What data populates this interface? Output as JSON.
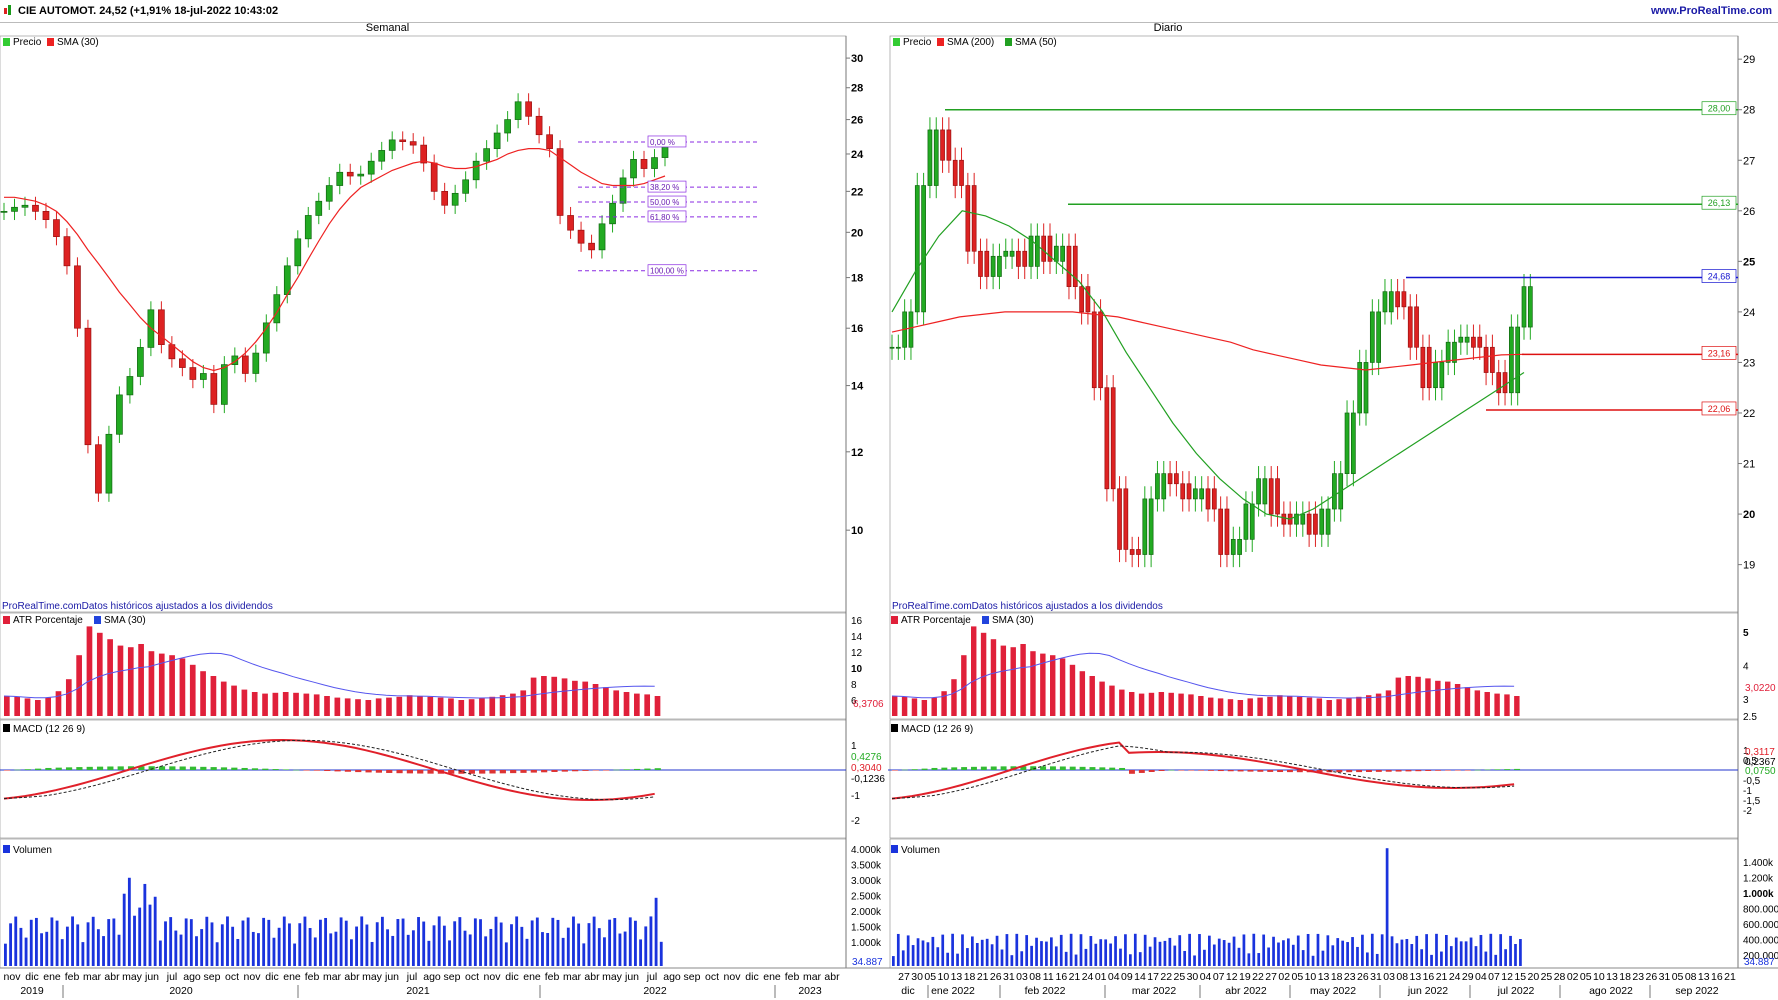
{
  "header": {
    "title": "CIE AUTOMOT. 24,52 (+1,91% 18-jul-2022 10:43:02",
    "url": "www.ProRealTime.com"
  },
  "panels": {
    "weekly": {
      "title": "Semanal",
      "price_legend": [
        "Precio",
        "SMA (30)"
      ],
      "source_note": "ProRealTime.comDatos históricos ajustados a los dividendos",
      "atr_legend": [
        "ATR Porcentaje",
        "SMA (30)"
      ],
      "macd_legend": "MACD (12 26 9)",
      "vol_legend": "Volumen",
      "fib_labels": [
        "0,00 %",
        "38,20 %",
        "50,00 %",
        "61,80 %",
        "100,00 %"
      ],
      "x_months": [
        "nov",
        "dic",
        "ene",
        "feb",
        "mar",
        "abr",
        "may",
        "jun",
        "jul",
        "ago",
        "sep",
        "oct",
        "nov",
        "dic",
        "ene",
        "feb",
        "mar",
        "abr",
        "may",
        "jun",
        "jul",
        "ago",
        "sep",
        "oct",
        "nov",
        "dic",
        "ene",
        "feb",
        "mar",
        "abr",
        "may",
        "jun",
        "jul",
        "ago",
        "sep",
        "oct",
        "nov",
        "dic",
        "ene",
        "feb",
        "mar",
        "abr"
      ],
      "x_years": [
        "2019",
        "2020",
        "2021",
        "2022",
        "2023"
      ]
    },
    "daily": {
      "title": "Diario",
      "price_legend": [
        "Precio",
        "SMA (200)",
        "SMA (50)"
      ],
      "source_note": "ProRealTime.comDatos históricos ajustados a los dividendos",
      "atr_legend": [
        "ATR Porcentaje",
        "SMA (30)"
      ],
      "macd_legend": "MACD (12 26 9)",
      "vol_legend": "Volumen",
      "level_labels": [
        "28,00",
        "26,13",
        "24,68",
        "23,16",
        "22,06"
      ],
      "x_days": [
        "27",
        "30",
        "05",
        "10",
        "13",
        "18",
        "21",
        "26",
        "31",
        "03",
        "08",
        "11",
        "16",
        "21",
        "24",
        "01",
        "04",
        "09",
        "14",
        "17",
        "22",
        "25",
        "30",
        "04",
        "07",
        "12",
        "19",
        "22",
        "27",
        "02",
        "05",
        "10",
        "13",
        "18",
        "23",
        "26",
        "31",
        "03",
        "08",
        "13",
        "16",
        "21",
        "24",
        "29",
        "04",
        "07",
        "12",
        "15",
        "20",
        "25",
        "28",
        "02",
        "05",
        "10",
        "13",
        "18",
        "23",
        "26",
        "31",
        "05",
        "08",
        "13",
        "16",
        "21"
      ],
      "x_months": [
        "dic",
        "ene 2022",
        "feb 2022",
        "mar 2022",
        "abr 2022",
        "may 2022",
        "jun 2022",
        "jul 2022",
        "ago 2022",
        "sep 2022"
      ]
    }
  },
  "chart_data": [
    {
      "type": "line",
      "title": "Semanal",
      "series": [
        {
          "name": "Precio",
          "y": [
            21,
            21.2,
            21.3,
            21.0,
            20.6,
            19.8,
            18.5,
            16.0,
            12.2,
            10.9,
            12.5,
            13.7,
            14.3,
            15.3,
            16.7,
            15.4,
            14.9,
            14.6,
            14.2,
            14.4,
            13.4,
            14.7,
            15.0,
            14.4,
            15.1,
            16.2,
            17.3,
            18.5,
            19.7,
            20.8,
            21.5,
            22.3,
            23.0,
            22.8,
            22.9,
            23.6,
            24.2,
            24.8,
            24.7,
            24.5,
            23.5,
            22.0,
            21.3,
            21.9,
            22.6,
            23.6,
            24.3,
            25.2,
            26.0,
            27.1,
            26.2,
            25.1,
            24.3,
            20.8,
            20.1,
            19.5,
            19.2,
            20.4,
            21.4,
            22.7,
            23.7,
            23.2,
            23.8,
            24.5
          ]
        },
        {
          "name": "SMA (30)",
          "y": [
            21.7,
            21.7,
            21.6,
            21.5,
            21.3,
            21.0,
            20.5,
            19.9,
            19.2,
            18.6,
            18.0,
            17.4,
            16.9,
            16.4,
            16.0,
            15.7,
            15.4,
            15.1,
            14.8,
            14.6,
            14.5,
            14.6,
            14.8,
            15.1,
            15.5,
            16.0,
            16.6,
            17.3,
            18.0,
            18.8,
            19.6,
            20.4,
            21.1,
            21.7,
            22.2,
            22.5,
            22.8,
            23.1,
            23.3,
            23.5,
            23.6,
            23.5,
            23.3,
            23.2,
            23.2,
            23.3,
            23.5,
            23.7,
            24.0,
            24.2,
            24.3,
            24.3,
            24.2,
            23.8,
            23.4,
            23.0,
            22.7,
            22.4,
            22.3,
            22.3,
            22.3,
            22.4,
            22.6,
            22.8
          ]
        }
      ],
      "y_ticks": [
        10,
        12,
        14,
        16,
        18,
        20,
        22,
        24,
        26,
        28,
        30
      ],
      "ylim": [
        8.5,
        31
      ],
      "fib_levels": [
        24.68,
        22.22,
        21.46,
        20.73,
        18.29
      ]
    },
    {
      "type": "line",
      "title": "Diario",
      "series": [
        {
          "name": "Precio",
          "y": [
            23.3,
            24.0,
            26.5,
            27.6,
            27.0,
            26.5,
            25.2,
            24.7,
            25.1,
            25.2,
            24.9,
            25.5,
            25.0,
            25.3,
            24.5,
            24.0,
            22.5,
            20.5,
            19.3,
            19.2,
            20.3,
            20.8,
            20.6,
            20.3,
            20.5,
            20.1,
            19.2,
            19.5,
            20.2,
            20.7,
            20.0,
            19.8,
            20.0,
            19.6,
            20.1,
            20.8,
            22.0,
            23.0,
            24.0,
            24.4,
            24.1,
            23.3,
            22.5,
            23.0,
            23.4,
            23.5,
            23.3,
            22.8,
            22.4,
            23.7,
            24.5
          ]
        },
        {
          "name": "SMA (200)",
          "y": [
            23.6,
            23.7,
            23.8,
            23.9,
            23.95,
            24.0,
            24.0,
            24.0,
            24.0,
            23.95,
            23.9,
            23.8,
            23.7,
            23.6,
            23.5,
            23.4,
            23.25,
            23.15,
            23.05,
            22.95,
            22.9,
            22.85,
            22.9,
            22.95,
            23.0,
            23.05,
            23.1,
            23.15,
            23.16
          ]
        },
        {
          "name": "SMA (50)",
          "y": [
            24.0,
            24.8,
            25.5,
            26.0,
            25.9,
            25.7,
            25.4,
            25.0,
            24.6,
            24.0,
            23.2,
            22.5,
            21.8,
            21.2,
            20.7,
            20.3,
            20.0,
            19.9,
            20.1,
            20.4,
            20.7,
            21.0,
            21.3,
            21.6,
            21.9,
            22.2,
            22.5,
            22.8
          ]
        }
      ],
      "y_ticks": [
        19,
        20,
        21,
        22,
        23,
        24,
        25,
        26,
        27,
        28,
        29
      ],
      "ylim": [
        18.3,
        29.3
      ],
      "levels": [
        28.0,
        26.13,
        24.68,
        23.16,
        22.06
      ]
    },
    {
      "type": "bar",
      "title": "ATR Porcentaje",
      "series": [
        {
          "name": "ATR Porcentaje",
          "y": [
            6.5,
            6.4,
            6.2,
            6.0,
            6.3,
            7.1,
            8.6,
            11.6,
            15.2,
            14.4,
            13.6,
            12.8,
            12.6,
            13.0,
            12.1,
            11.8,
            11.6,
            11.2,
            10.4,
            9.6,
            9.0,
            8.3,
            7.8,
            7.3,
            7.0,
            6.8,
            6.9,
            7.0,
            6.9,
            6.8,
            6.7,
            6.5,
            6.3,
            6.2,
            6.1,
            6.0,
            6.2,
            6.3,
            6.4,
            6.6,
            6.5,
            6.4,
            6.3,
            6.2,
            6.0,
            6.1,
            6.2,
            6.4,
            6.6,
            6.8,
            7.2,
            8.8,
            9.0,
            8.9,
            8.7,
            8.4,
            8.3,
            8.0,
            7.6,
            7.2,
            7.0,
            6.8,
            6.7,
            6.5
          ]
        }
      ],
      "y_ticks": [
        6,
        8,
        10,
        12,
        14,
        16
      ],
      "last": [
        "6,3706"
      ]
    },
    {
      "type": "bar",
      "title": "MACD (12 26 9)",
      "y_ticks": [
        -2,
        -1,
        1
      ],
      "last": [
        "0,4276",
        "0,3040",
        "-0,1236"
      ]
    },
    {
      "type": "bar",
      "title": "Volumen",
      "y_ticks": [
        "1.000k",
        "1.500k",
        "2.000k",
        "2.500k",
        "3.000k",
        "3.500k",
        "4.000k"
      ],
      "last": [
        "34.887"
      ]
    }
  ]
}
